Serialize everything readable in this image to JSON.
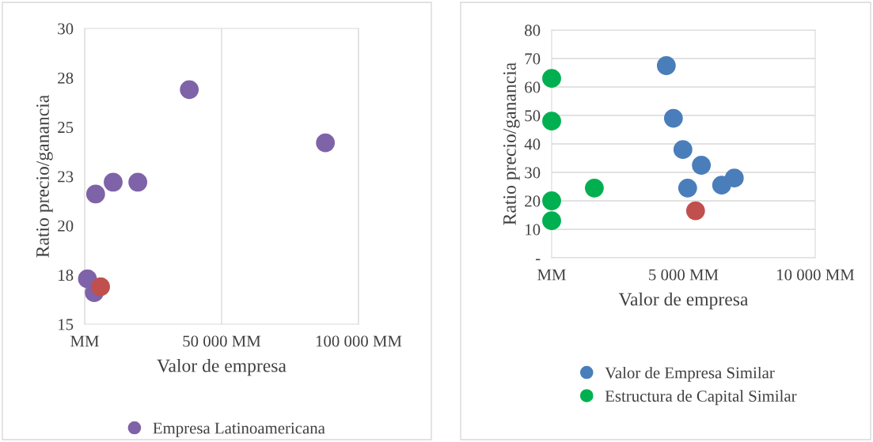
{
  "chart_data": [
    {
      "type": "scatter",
      "xlabel": "Valor de empresa",
      "ylabel": "Ratio precio/ganancia",
      "xlim": [
        0,
        100000
      ],
      "xticks": [
        {
          "value": 0,
          "label": "MM"
        },
        {
          "value": 50000,
          "label": "50 000 MM"
        },
        {
          "value": 100000,
          "label": "100 000 MM"
        }
      ],
      "ylim": [
        15,
        30
      ],
      "yticks": [
        15,
        {
          "value": 17.5,
          "label": "18"
        },
        20,
        {
          "value": 22.5,
          "label": "23"
        },
        25,
        {
          "value": 27.5,
          "label": "28"
        },
        30
      ],
      "grid": "x",
      "legend": "bottom",
      "marker": "circle",
      "series": [
        {
          "name": "Empresa Latinoamericana",
          "color": "#7f63a8",
          "x": [
            1000,
            3500,
            4000,
            10400,
            19400,
            38200,
            87900
          ],
          "values": [
            17.3,
            16.6,
            21.6,
            22.2,
            22.2,
            26.9,
            24.2
          ]
        },
        {
          "color": "#c0504d",
          "x": [
            5800
          ],
          "values": [
            16.9
          ]
        }
      ]
    },
    {
      "type": "scatter",
      "xlabel": "Valor de empresa",
      "ylabel": "Ratio precio/ganancia",
      "xlim": [
        0,
        10000
      ],
      "xticks": [
        {
          "value": 0,
          "label": "MM"
        },
        {
          "value": 5000,
          "label": "5 000 MM"
        },
        {
          "value": 10000,
          "label": "10 000 MM"
        }
      ],
      "ylim": [
        0,
        80
      ],
      "yticks": [
        {
          "value": 0,
          "label": "-"
        },
        10,
        20,
        30,
        40,
        50,
        60,
        70,
        80
      ],
      "grid": "y",
      "legend": "bottom",
      "marker": "circle",
      "series": [
        {
          "name": "Valor de Empresa Similar",
          "color": "#4a7ebb",
          "x": [
            4350,
            4620,
            4980,
            5680,
            5160,
            6450,
            6930
          ],
          "values": [
            67.5,
            49,
            38,
            32.5,
            24.5,
            25.5,
            28
          ]
        },
        {
          "color": "#c0504d",
          "x": [
            5460
          ],
          "values": [
            16.5
          ]
        },
        {
          "name": "Estructura de Capital Similar",
          "color": "#00b050",
          "x": [
            0,
            0,
            0,
            0,
            1620
          ],
          "values": [
            63,
            48,
            20,
            13,
            24.5
          ]
        }
      ]
    }
  ]
}
